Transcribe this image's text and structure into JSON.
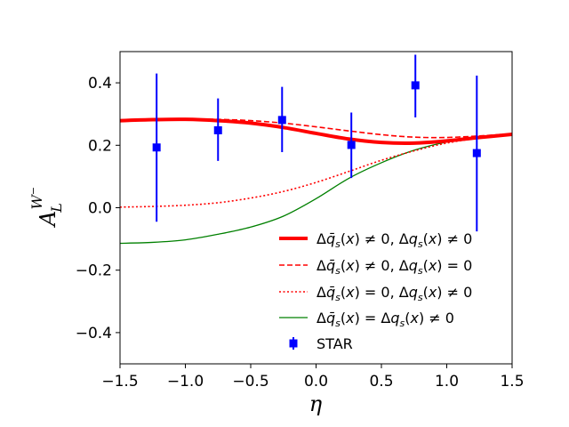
{
  "chart_data": {
    "type": "line",
    "title": "",
    "xlabel": "η",
    "ylabel": {
      "base": "A",
      "sub": "L",
      "sup": "W",
      "sup2": "−"
    },
    "xlim": [
      -1.5,
      1.5
    ],
    "ylim": [
      -0.5,
      0.5
    ],
    "xticks": [
      -1.5,
      -1.0,
      -0.5,
      0.0,
      0.5,
      1.0,
      1.5
    ],
    "xtick_labels": [
      "−1.5",
      "−1.0",
      "−0.5",
      "0.0",
      "0.5",
      "1.0",
      "1.5"
    ],
    "yticks": [
      -0.4,
      -0.2,
      0.0,
      0.2,
      0.4
    ],
    "ytick_labels": [
      "−0.4",
      "−0.2",
      "0.0",
      "0.2",
      "0.4"
    ],
    "grid": false,
    "legend_position": "lower-right",
    "series": [
      {
        "name": "Δq̄s(x) ≠ 0, Δqs(x) ≠ 0",
        "legend": {
          "q1": "q",
          "op1": "≠",
          "rhs1": "0",
          "q2": "q",
          "op2": "≠",
          "rhs2": "0"
        },
        "color": "#ff0000",
        "style": "solid",
        "width": 4,
        "x": [
          -1.5,
          -1.25,
          -1.0,
          -0.75,
          -0.5,
          -0.25,
          0.0,
          0.25,
          0.5,
          0.75,
          1.0,
          1.25,
          1.5
        ],
        "y": [
          0.279,
          0.282,
          0.283,
          0.279,
          0.271,
          0.257,
          0.238,
          0.22,
          0.209,
          0.207,
          0.214,
          0.225,
          0.235
        ]
      },
      {
        "name": "Δq̄s(x) ≠ 0, Δqs(x) = 0",
        "legend": {
          "q1": "q",
          "op1": "≠",
          "rhs1": "0",
          "q2": "q",
          "op2": "=",
          "rhs2": "0"
        },
        "color": "#ff0000",
        "style": "dashed",
        "width": 1.6,
        "x": [
          -1.5,
          -1.25,
          -1.0,
          -0.75,
          -0.5,
          -0.25,
          0.0,
          0.25,
          0.5,
          0.75,
          1.0,
          1.25,
          1.5
        ],
        "y": [
          0.279,
          0.282,
          0.284,
          0.283,
          0.279,
          0.271,
          0.259,
          0.246,
          0.234,
          0.226,
          0.225,
          0.23,
          0.237
        ]
      },
      {
        "name": "Δq̄s(x) = 0, Δqs(x) ≠ 0",
        "legend": {
          "q1": "q",
          "op1": "=",
          "rhs1": "0",
          "q2": "q",
          "op2": "≠",
          "rhs2": "0"
        },
        "color": "#ff0000",
        "style": "dotted",
        "width": 1.6,
        "x": [
          -1.5,
          -1.25,
          -1.0,
          -0.75,
          -0.5,
          -0.25,
          0.0,
          0.25,
          0.5,
          0.75,
          1.0,
          1.25,
          1.5
        ],
        "y": [
          0.002,
          0.004,
          0.008,
          0.016,
          0.031,
          0.052,
          0.081,
          0.116,
          0.152,
          0.182,
          0.207,
          0.223,
          0.233
        ]
      },
      {
        "name": "Δq̄s(x) = Δqs(x) ≠ 0",
        "legend": {
          "q1": "q",
          "op1": "=",
          "rhs1": "",
          "q2": "q",
          "op2": "≠",
          "rhs2": "0"
        },
        "color": "#008000",
        "style": "solid",
        "width": 1.3,
        "x": [
          -1.5,
          -1.25,
          -1.0,
          -0.75,
          -0.5,
          -0.25,
          0.0,
          0.25,
          0.5,
          0.75,
          1.0,
          1.25,
          1.5
        ],
        "y": [
          -0.114,
          -0.111,
          -0.103,
          -0.085,
          -0.062,
          -0.027,
          0.029,
          0.094,
          0.144,
          0.184,
          0.21,
          0.223,
          0.238
        ]
      }
    ],
    "points": {
      "name": "STAR",
      "color": "#0000ff",
      "x": [
        -1.22,
        -0.75,
        -0.26,
        0.27,
        0.76,
        1.23
      ],
      "y": [
        0.193,
        0.248,
        0.281,
        0.201,
        0.392,
        0.175
      ],
      "yerr_low": [
        0.238,
        0.098,
        0.103,
        0.106,
        0.103,
        0.251
      ],
      "yerr_high": [
        0.237,
        0.102,
        0.106,
        0.104,
        0.098,
        0.248
      ]
    }
  }
}
